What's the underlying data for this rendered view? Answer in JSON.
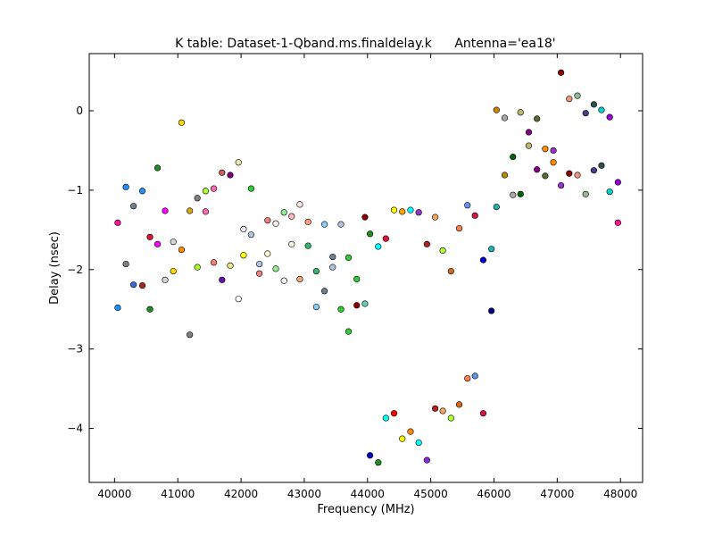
{
  "chart_data": {
    "type": "scatter",
    "title": "K table: Dataset-1-Qband.ms.finaldelay.k",
    "subtitle": "Antenna='ea18'",
    "xlabel": "Frequency (MHz)",
    "ylabel": "Delay (nsec)",
    "xlim": [
      39600,
      48350
    ],
    "ylim": [
      -4.68,
      0.72
    ],
    "xticks": [
      40000,
      41000,
      42000,
      43000,
      44000,
      45000,
      46000,
      47000,
      48000
    ],
    "yticks": [
      0,
      -1,
      -2,
      -3,
      -4
    ],
    "ytick_labels": [
      "0",
      "−1",
      "−2",
      "−3",
      "−4"
    ],
    "grid": false,
    "legend": "none",
    "points": [
      {
        "x": 40050,
        "y": -1.41,
        "color": "#ff1493"
      },
      {
        "x": 40050,
        "y": -2.48,
        "color": "#1e90ff"
      },
      {
        "x": 40180,
        "y": -0.96,
        "color": "#1e90ff"
      },
      {
        "x": 40180,
        "y": -1.93,
        "color": "#808080"
      },
      {
        "x": 40300,
        "y": -1.2,
        "color": "#708090"
      },
      {
        "x": 40300,
        "y": -2.19,
        "color": "#4169e1"
      },
      {
        "x": 40440,
        "y": -1.01,
        "color": "#1e90ff"
      },
      {
        "x": 40440,
        "y": -2.2,
        "color": "#b22222"
      },
      {
        "x": 40560,
        "y": -1.59,
        "color": "#dc143c"
      },
      {
        "x": 40560,
        "y": -2.5,
        "color": "#228b22"
      },
      {
        "x": 40680,
        "y": -0.72,
        "color": "#228b22"
      },
      {
        "x": 40680,
        "y": -1.68,
        "color": "#ff00ff"
      },
      {
        "x": 40800,
        "y": -1.26,
        "color": "#ff00ff"
      },
      {
        "x": 40800,
        "y": -2.13,
        "color": "#d3d3d3"
      },
      {
        "x": 40930,
        "y": -1.65,
        "color": "#d3d3d3"
      },
      {
        "x": 40930,
        "y": -2.02,
        "color": "#ffd700"
      },
      {
        "x": 41060,
        "y": -0.15,
        "color": "#ffd700"
      },
      {
        "x": 41060,
        "y": -1.75,
        "color": "#ff8c00"
      },
      {
        "x": 41190,
        "y": -1.26,
        "color": "#daa520"
      },
      {
        "x": 41190,
        "y": -2.82,
        "color": "#808080"
      },
      {
        "x": 41310,
        "y": -1.1,
        "color": "#808080"
      },
      {
        "x": 41310,
        "y": -1.97,
        "color": "#adff2f"
      },
      {
        "x": 41440,
        "y": -1.01,
        "color": "#adff2f"
      },
      {
        "x": 41440,
        "y": -1.27,
        "color": "#ff69b4"
      },
      {
        "x": 41570,
        "y": -0.98,
        "color": "#ff69b4"
      },
      {
        "x": 41570,
        "y": -1.91,
        "color": "#fa8072"
      },
      {
        "x": 41700,
        "y": -0.78,
        "color": "#cd5c5c"
      },
      {
        "x": 41700,
        "y": -2.13,
        "color": "#6a0dad"
      },
      {
        "x": 41830,
        "y": -0.81,
        "color": "#800080"
      },
      {
        "x": 41830,
        "y": -1.95,
        "color": "#f0e68c"
      },
      {
        "x": 41960,
        "y": -0.65,
        "color": "#eee8aa"
      },
      {
        "x": 41960,
        "y": -2.37,
        "color": "#ffffff"
      },
      {
        "x": 42040,
        "y": -1.49,
        "color": "#e6e6fa"
      },
      {
        "x": 42040,
        "y": -1.82,
        "color": "#ffff00"
      },
      {
        "x": 42160,
        "y": -0.98,
        "color": "#32cd32"
      },
      {
        "x": 42160,
        "y": -1.56,
        "color": "#b0c4de"
      },
      {
        "x": 42290,
        "y": -1.93,
        "color": "#b0c4de"
      },
      {
        "x": 42290,
        "y": -2.05,
        "color": "#f08080"
      },
      {
        "x": 42420,
        "y": -1.38,
        "color": "#f08080"
      },
      {
        "x": 42420,
        "y": -1.8,
        "color": "#fffacd"
      },
      {
        "x": 42550,
        "y": -1.42,
        "color": "#faf0e6"
      },
      {
        "x": 42550,
        "y": -1.99,
        "color": "#90ee90"
      },
      {
        "x": 42680,
        "y": -1.28,
        "color": "#90ee90"
      },
      {
        "x": 42680,
        "y": -2.14,
        "color": "#f5f5f5"
      },
      {
        "x": 42800,
        "y": -1.33,
        "color": "#ffb6c1"
      },
      {
        "x": 42800,
        "y": -1.68,
        "color": "#f5f5dc"
      },
      {
        "x": 42930,
        "y": -1.18,
        "color": "#ffe4e1"
      },
      {
        "x": 42930,
        "y": -2.12,
        "color": "#ffa07a"
      },
      {
        "x": 43060,
        "y": -1.4,
        "color": "#ffa07a"
      },
      {
        "x": 43060,
        "y": -1.7,
        "color": "#3cb371"
      },
      {
        "x": 43190,
        "y": -2.02,
        "color": "#3cb371"
      },
      {
        "x": 43190,
        "y": -2.47,
        "color": "#87cefa"
      },
      {
        "x": 43320,
        "y": -1.43,
        "color": "#87cefa"
      },
      {
        "x": 43320,
        "y": -2.27,
        "color": "#708090"
      },
      {
        "x": 43450,
        "y": -1.84,
        "color": "#708090"
      },
      {
        "x": 43450,
        "y": -1.97,
        "color": "#b0c4de"
      },
      {
        "x": 43580,
        "y": -1.43,
        "color": "#b0c4de"
      },
      {
        "x": 43580,
        "y": -2.5,
        "color": "#32cd32"
      },
      {
        "x": 43700,
        "y": -1.85,
        "color": "#32cd32"
      },
      {
        "x": 43700,
        "y": -2.78,
        "color": "#32cd32"
      },
      {
        "x": 43830,
        "y": -2.12,
        "color": "#32cd32"
      },
      {
        "x": 43830,
        "y": -2.45,
        "color": "#8b0000"
      },
      {
        "x": 43960,
        "y": -1.34,
        "color": "#8b0000"
      },
      {
        "x": 43960,
        "y": -2.43,
        "color": "#66cdaa"
      },
      {
        "x": 44040,
        "y": -1.55,
        "color": "#228b22"
      },
      {
        "x": 44040,
        "y": -4.34,
        "color": "#0000cd"
      },
      {
        "x": 44170,
        "y": -1.71,
        "color": "#00ffff"
      },
      {
        "x": 44170,
        "y": -4.43,
        "color": "#228b22"
      },
      {
        "x": 44290,
        "y": -1.61,
        "color": "#dc143c"
      },
      {
        "x": 44290,
        "y": -3.87,
        "color": "#00ffff"
      },
      {
        "x": 44420,
        "y": -1.25,
        "color": "#ffff00"
      },
      {
        "x": 44420,
        "y": -3.81,
        "color": "#ff0000"
      },
      {
        "x": 44550,
        "y": -1.27,
        "color": "#ffa500"
      },
      {
        "x": 44550,
        "y": -4.13,
        "color": "#ffff00"
      },
      {
        "x": 44680,
        "y": -1.25,
        "color": "#00ffff"
      },
      {
        "x": 44680,
        "y": -4.04,
        "color": "#ff8c00"
      },
      {
        "x": 44810,
        "y": -1.28,
        "color": "#9932cc"
      },
      {
        "x": 44810,
        "y": -4.18,
        "color": "#00ffff"
      },
      {
        "x": 44940,
        "y": -1.68,
        "color": "#b22222"
      },
      {
        "x": 44940,
        "y": -4.4,
        "color": "#8a2be2"
      },
      {
        "x": 45070,
        "y": -1.34,
        "color": "#f4a460"
      },
      {
        "x": 45070,
        "y": -3.75,
        "color": "#b22222"
      },
      {
        "x": 45190,
        "y": -1.76,
        "color": "#adff2f"
      },
      {
        "x": 45190,
        "y": -3.78,
        "color": "#f4a460"
      },
      {
        "x": 45320,
        "y": -2.02,
        "color": "#d2691e"
      },
      {
        "x": 45320,
        "y": -3.87,
        "color": "#adff2f"
      },
      {
        "x": 45450,
        "y": -1.48,
        "color": "#ff7f50"
      },
      {
        "x": 45450,
        "y": -3.7,
        "color": "#d2691e"
      },
      {
        "x": 45580,
        "y": -1.19,
        "color": "#6495ed"
      },
      {
        "x": 45580,
        "y": -3.37,
        "color": "#ff7f50"
      },
      {
        "x": 45700,
        "y": -1.32,
        "color": "#dc143c"
      },
      {
        "x": 45700,
        "y": -3.34,
        "color": "#6495ed"
      },
      {
        "x": 45830,
        "y": -1.88,
        "color": "#0000cd"
      },
      {
        "x": 45830,
        "y": -3.81,
        "color": "#dc143c"
      },
      {
        "x": 45960,
        "y": -1.74,
        "color": "#20b2aa"
      },
      {
        "x": 45960,
        "y": -2.52,
        "color": "#00008b"
      },
      {
        "x": 46040,
        "y": 0.01,
        "color": "#cd8500"
      },
      {
        "x": 46040,
        "y": -1.21,
        "color": "#20b2aa"
      },
      {
        "x": 46170,
        "y": -0.09,
        "color": "#a9a9a9"
      },
      {
        "x": 46170,
        "y": -0.81,
        "color": "#b8860b"
      },
      {
        "x": 46300,
        "y": -0.58,
        "color": "#006400"
      },
      {
        "x": 46300,
        "y": -1.06,
        "color": "#a9a9a9"
      },
      {
        "x": 46420,
        "y": -0.02,
        "color": "#bdb76b"
      },
      {
        "x": 46420,
        "y": -1.05,
        "color": "#006400"
      },
      {
        "x": 46550,
        "y": -0.27,
        "color": "#8b008b"
      },
      {
        "x": 46550,
        "y": -0.44,
        "color": "#bdb76b"
      },
      {
        "x": 46680,
        "y": -0.1,
        "color": "#556b2f"
      },
      {
        "x": 46680,
        "y": -0.74,
        "color": "#8b008b"
      },
      {
        "x": 46810,
        "y": -0.48,
        "color": "#ff8c00"
      },
      {
        "x": 46810,
        "y": -0.82,
        "color": "#556b2f"
      },
      {
        "x": 46940,
        "y": -0.5,
        "color": "#9932cc"
      },
      {
        "x": 46940,
        "y": -0.65,
        "color": "#ff8c00"
      },
      {
        "x": 47060,
        "y": 0.48,
        "color": "#8b0000"
      },
      {
        "x": 47060,
        "y": -0.94,
        "color": "#9932cc"
      },
      {
        "x": 47190,
        "y": 0.15,
        "color": "#e9967a"
      },
      {
        "x": 47190,
        "y": -0.79,
        "color": "#8b0000"
      },
      {
        "x": 47320,
        "y": 0.19,
        "color": "#8fbc8f"
      },
      {
        "x": 47320,
        "y": -0.81,
        "color": "#e9967a"
      },
      {
        "x": 47450,
        "y": -0.03,
        "color": "#483d8b"
      },
      {
        "x": 47450,
        "y": -1.05,
        "color": "#8fbc8f"
      },
      {
        "x": 47580,
        "y": 0.08,
        "color": "#2f4f4f"
      },
      {
        "x": 47580,
        "y": -0.75,
        "color": "#483d8b"
      },
      {
        "x": 47700,
        "y": 0.01,
        "color": "#00ced1"
      },
      {
        "x": 47700,
        "y": -0.69,
        "color": "#2f4f4f"
      },
      {
        "x": 47830,
        "y": -0.08,
        "color": "#9400d3"
      },
      {
        "x": 47830,
        "y": -1.02,
        "color": "#00ced1"
      },
      {
        "x": 47960,
        "y": -0.9,
        "color": "#9400d3"
      },
      {
        "x": 47960,
        "y": -1.41,
        "color": "#ff1493"
      }
    ]
  }
}
